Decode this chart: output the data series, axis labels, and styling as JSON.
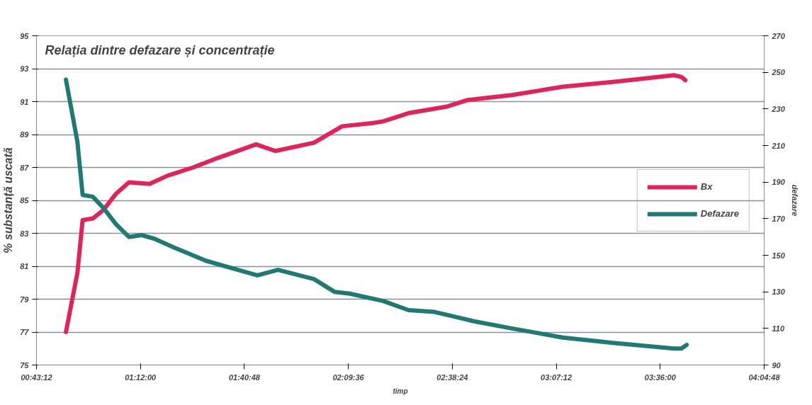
{
  "chart_data": {
    "type": "line",
    "title": "Relația dintre defazare și concentrație",
    "xlabel": "timp",
    "ylabel": "% substanță uscată",
    "y2label": "defazare",
    "xlim": [
      0.72,
      4.08
    ],
    "xticks": [
      {
        "value": 0.72,
        "label": "00:43:12"
      },
      {
        "value": 1.2,
        "label": "01:12:00"
      },
      {
        "value": 1.68,
        "label": "01:40:48"
      },
      {
        "value": 2.16,
        "label": "02:09:36"
      },
      {
        "value": 2.64,
        "label": "02:38:24"
      },
      {
        "value": 3.12,
        "label": "03:07:12"
      },
      {
        "value": 3.6,
        "label": "03:36:00"
      },
      {
        "value": 4.08,
        "label": "04:04:48"
      }
    ],
    "ylim": [
      75,
      95
    ],
    "yticks": [
      75,
      77,
      79,
      81,
      83,
      85,
      87,
      89,
      91,
      93,
      95
    ],
    "y2lim": [
      90,
      270
    ],
    "y2ticks": [
      90,
      110,
      130,
      150,
      170,
      190,
      210,
      230,
      250,
      270
    ],
    "grid": "y",
    "legend": "right",
    "line_style": "solid",
    "marker": "none",
    "series": [
      {
        "name": "Bx",
        "color": "#e0245a",
        "x": [
          0.856,
          0.909,
          0.933,
          0.98,
          1.028,
          1.087,
          1.147,
          1.242,
          1.325,
          1.443,
          1.562,
          1.734,
          1.823,
          2.001,
          2.131,
          2.274,
          2.321,
          2.438,
          2.616,
          2.712,
          2.915,
          3.15,
          3.389,
          3.663,
          3.698,
          3.716
        ],
        "values": [
          77.0,
          80.6,
          83.8,
          83.9,
          84.4,
          85.4,
          86.1,
          86.0,
          86.5,
          87.0,
          87.6,
          88.4,
          88.0,
          88.5,
          89.5,
          89.7,
          89.8,
          90.3,
          90.7,
          91.1,
          91.4,
          91.9,
          92.2,
          92.6,
          92.5,
          92.3
        ]
      },
      {
        "name": "Defazare",
        "color": "#1f7a73",
        "axis": "y2",
        "x": [
          0.856,
          0.909,
          0.933,
          0.98,
          1.028,
          1.087,
          1.147,
          1.206,
          1.265,
          1.36,
          1.502,
          1.621,
          1.74,
          1.835,
          2.001,
          2.096,
          2.167,
          2.321,
          2.438,
          2.558,
          2.701,
          2.736,
          2.915,
          3.15,
          3.389,
          3.663,
          3.698,
          3.722
        ],
        "values": [
          246,
          212,
          183,
          182,
          176,
          167,
          160,
          161,
          159,
          154,
          147,
          143,
          139,
          142,
          137,
          130,
          129,
          125,
          120,
          119,
          115,
          114,
          110,
          105,
          102,
          99,
          99,
          101
        ]
      }
    ]
  }
}
